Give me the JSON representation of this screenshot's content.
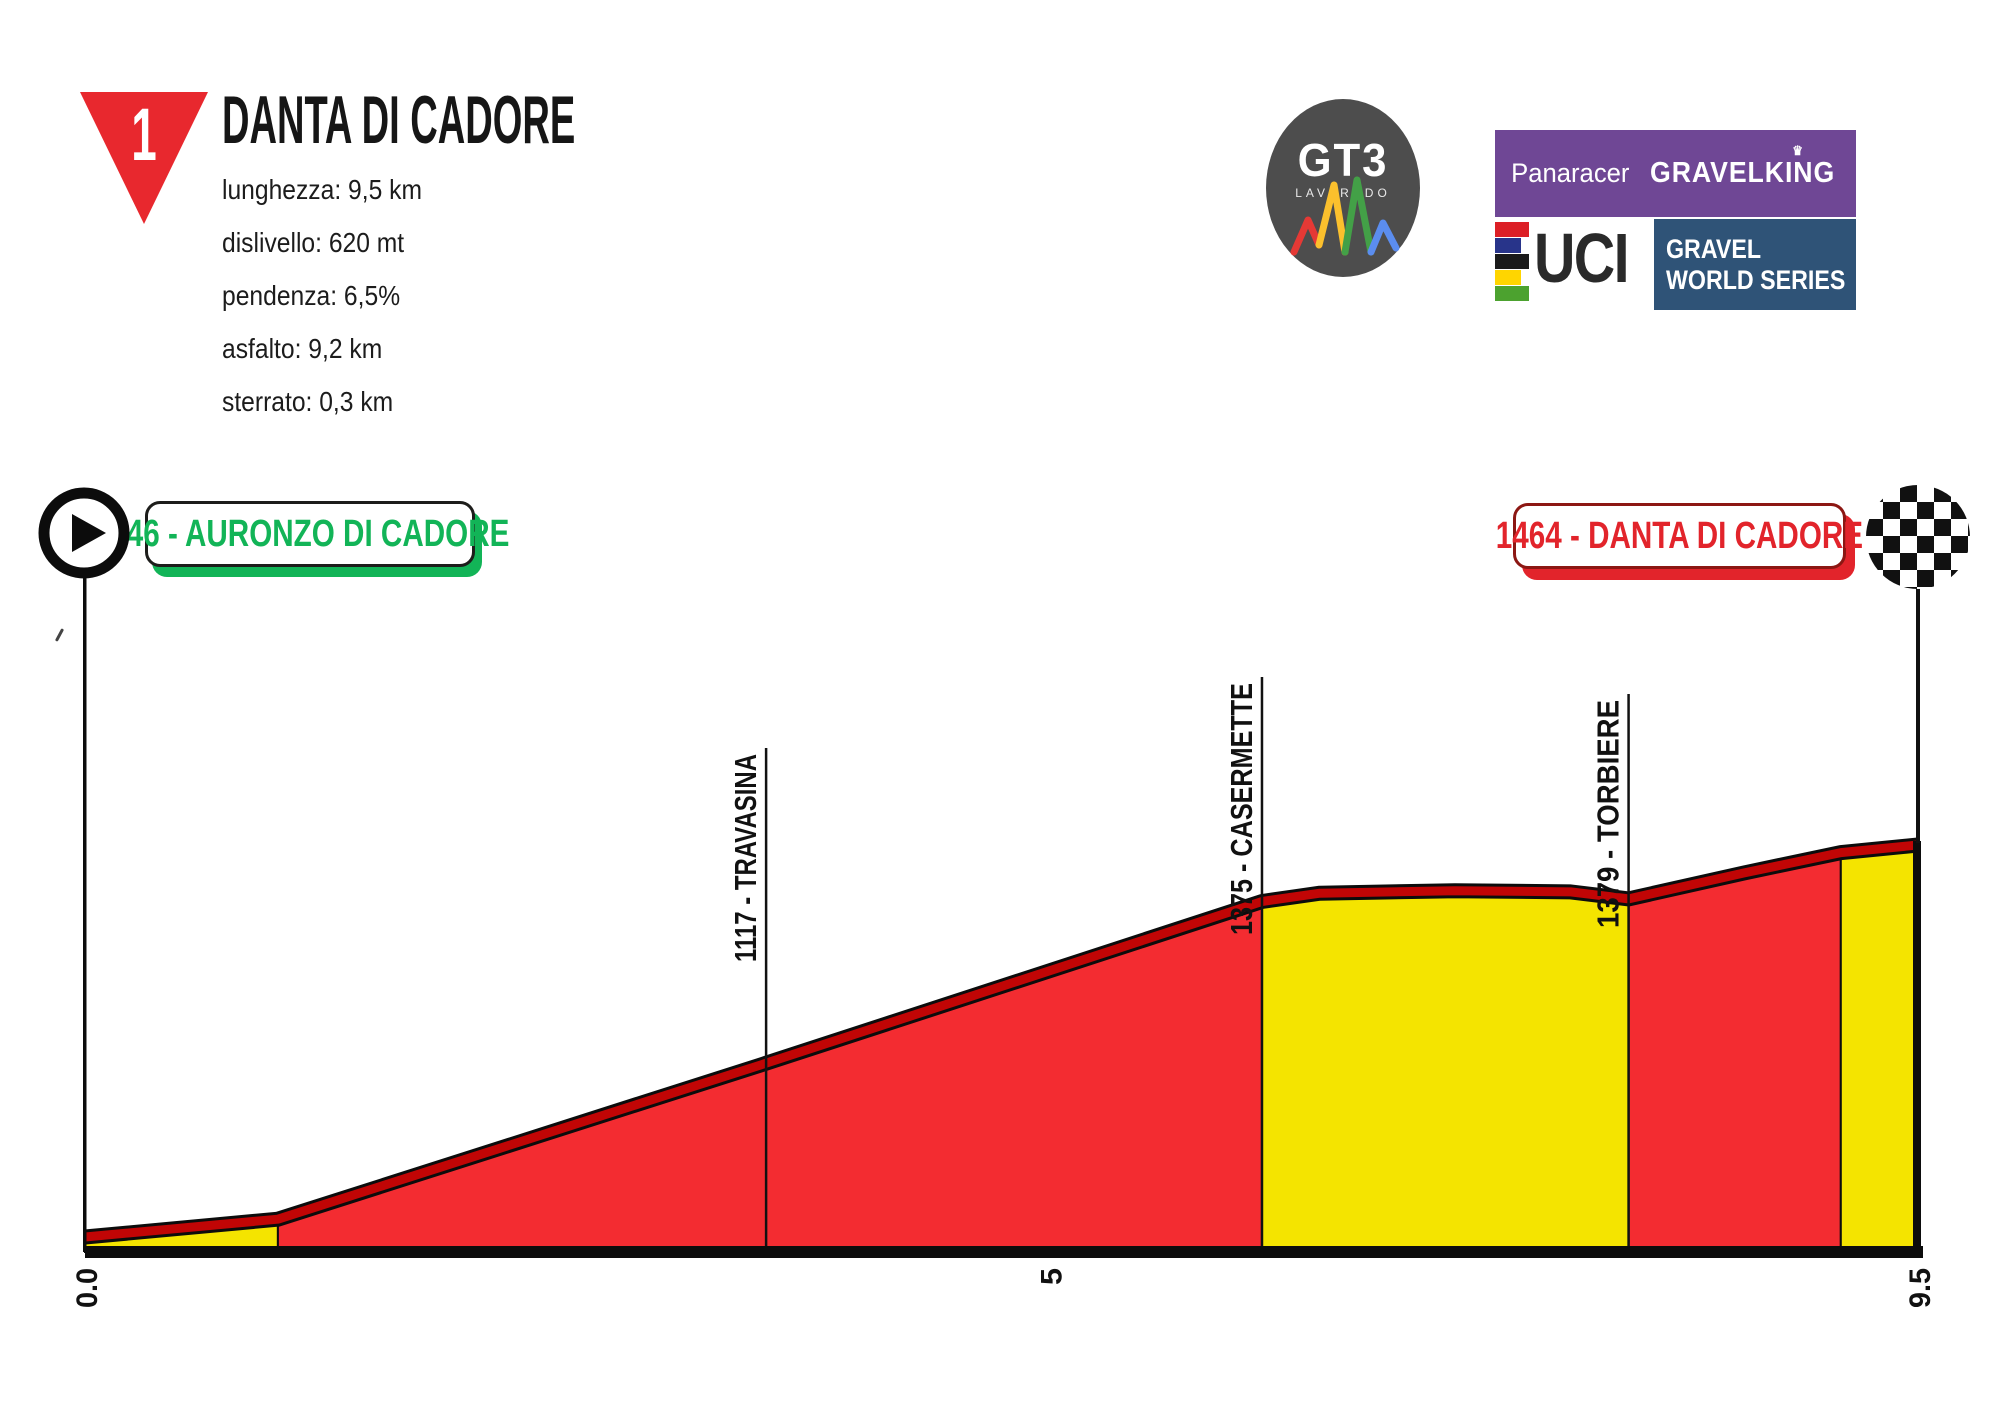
{
  "header": {
    "stage_number": "1",
    "title": "DANTA DI CADORE",
    "stats": [
      "lunghezza: 9,5 km",
      "dislivello: 620 mt",
      "pendenza: 6,5%",
      "asfalto: 9,2 km",
      "sterrato: 0,3 km"
    ]
  },
  "sponsors": {
    "gt3": {
      "name": "GT3",
      "subtitle": "LAVAREDO"
    },
    "panaracer": {
      "brand": "Panaracer",
      "product": "GRAVELKING"
    },
    "uci": {
      "acronym": "UCI",
      "series_line1": "GRAVEL",
      "series_line2": "WORLD SERIES"
    }
  },
  "course": {
    "start_label": "846 - AURONZO DI CADORE",
    "finish_label": "1464 - DANTA DI CADORE"
  },
  "icons": {
    "crown": "♛"
  },
  "colors": {
    "triangle_red": "#e8282e",
    "profile_fill_red": "#f32c31",
    "profile_fill_yellow": "#f4e400",
    "profile_band_dark_red": "#c10505",
    "start_green": "#12b457",
    "finish_red": "#e2242b",
    "panaracer_purple": "#6f4795",
    "uci_navy": "#2f5377",
    "gt3_gray": "#4d4d4d",
    "axis_black": "#0c0c0c",
    "uci_stripes": [
      "#dc1f26",
      "#28348a",
      "#1a1a1a",
      "#ffd500",
      "#4ca22f"
    ]
  },
  "chart_data": {
    "type": "area",
    "description": "Elevation profile of climb from Auronzo di Cadore to Danta di Cadore",
    "x_range_km": [
      0,
      9.5
    ],
    "elevation_range_m": [
      846,
      1464
    ],
    "profile": {
      "km": [
        0,
        1.0,
        3.5,
        6.1,
        6.4,
        7.1,
        7.7,
        8.0,
        8.6,
        9.1,
        9.5
      ],
      "elevation_m": [
        846,
        874,
        1117,
        1375,
        1388,
        1392,
        1390,
        1379,
        1420,
        1452,
        1464
      ]
    },
    "surface_segments": [
      {
        "from_km": 0.0,
        "to_km": 1.0,
        "color": "yellow"
      },
      {
        "from_km": 1.0,
        "to_km": 6.1,
        "color": "red"
      },
      {
        "from_km": 6.1,
        "to_km": 8.0,
        "color": "yellow"
      },
      {
        "from_km": 8.0,
        "to_km": 9.1,
        "color": "red"
      },
      {
        "from_km": 9.1,
        "to_km": 9.5,
        "color": "yellow"
      }
    ],
    "waypoints": [
      {
        "km": 3.53,
        "elevation_m": 1117,
        "label": "1117 - TRAVASINA"
      },
      {
        "km": 6.1,
        "elevation_m": 1375,
        "label": "1375 - CASERMETTE"
      },
      {
        "km": 8.0,
        "elevation_m": 1379,
        "label": "1379 - TORBIERE"
      }
    ],
    "x_ticks": [
      {
        "km": 0.0,
        "label": "0.0"
      },
      {
        "km": 5.0,
        "label": "5"
      },
      {
        "km": 9.5,
        "label": "9.5"
      }
    ],
    "start": {
      "elevation_m": 846,
      "name": "AURONZO DI CADORE"
    },
    "finish": {
      "elevation_m": 1464,
      "name": "DANTA DI CADORE"
    },
    "legend": "none",
    "grid": false
  }
}
